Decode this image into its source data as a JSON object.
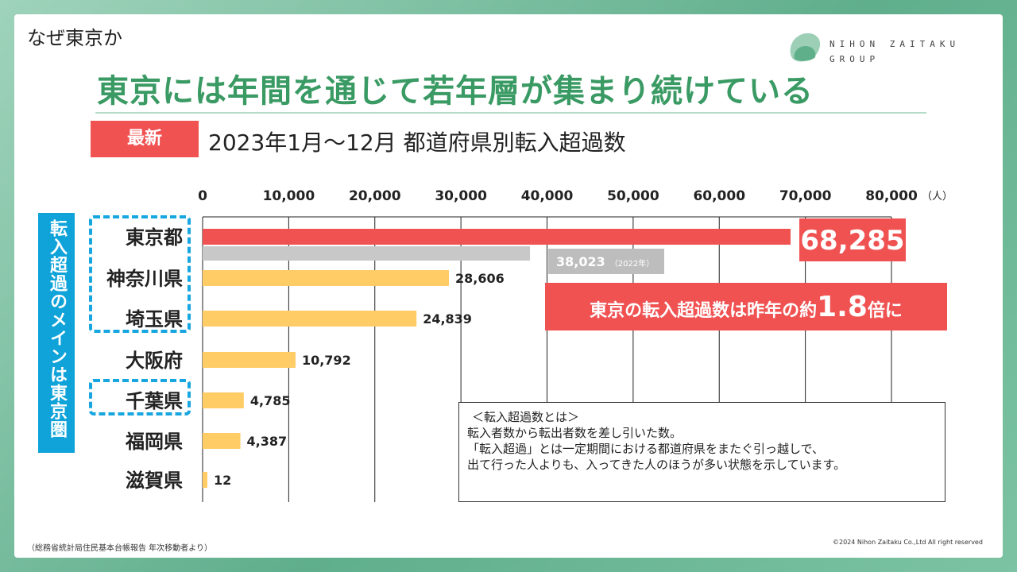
{
  "page": {
    "section_title": "なぜ東京か",
    "headline": "東京には年間を通じて若年層が集まり続けている",
    "badge": "最新",
    "subtitle": "2023年1月～12月  都道府県別転入超過数",
    "y_label": "転入超過のメインは東京圏",
    "source": "（総務省統計局住民基本台帳報告 年次移動者より）",
    "copyright": "©2024 Nihon Zaitaku Co.,Ltd All right reserved"
  },
  "logo": {
    "line1": "NIHON ZAITAKU",
    "line2": "GROUP"
  },
  "callouts": {
    "tokyo_value": "68,285",
    "prev_value": "38,023",
    "prev_year": "（2022年）",
    "ratio_prefix": "東京の転入超過数は昨年の約",
    "ratio_number": "1.8",
    "ratio_suffix": "倍に"
  },
  "definition": {
    "title": "＜転入超過数とは＞",
    "lines": [
      "転入者数から転出者数を差し引いた数。",
      "「転入超過」とは一定期間における都道府県をまたぐ引っ越しで、",
      "出て行った人よりも、入ってきた人のほうが多い状態を示しています。"
    ]
  },
  "colors": {
    "tokyo": "#f05252",
    "prev": "#c8c8c8",
    "others": "#ffcc66",
    "accent_blue": "#17a6e0",
    "green": "#3a9a64"
  },
  "chart_data": {
    "type": "bar",
    "orientation": "horizontal",
    "categories": [
      "東京都",
      "神奈川県",
      "埼玉県",
      "大阪府",
      "千葉県",
      "福岡県",
      "滋賀県"
    ],
    "series": [
      {
        "name": "2023",
        "values": [
          68285,
          28606,
          24839,
          10792,
          4785,
          4387,
          12
        ]
      },
      {
        "name": "2022年",
        "values": [
          38023,
          null,
          null,
          null,
          null,
          null,
          null
        ]
      }
    ],
    "value_labels": [
      "68,285",
      "28,606",
      "24,839",
      "10,792",
      "4,785",
      "4,387",
      "12"
    ],
    "xlim": [
      0,
      80000
    ],
    "x_ticks": [
      0,
      10000,
      20000,
      30000,
      40000,
      50000,
      60000,
      70000,
      80000
    ],
    "x_tick_labels": [
      "0",
      "10,000",
      "20,000",
      "30,000",
      "40,000",
      "50,000",
      "60,000",
      "70,000",
      "80,000"
    ],
    "x_unit": "（人）",
    "grid": true
  }
}
